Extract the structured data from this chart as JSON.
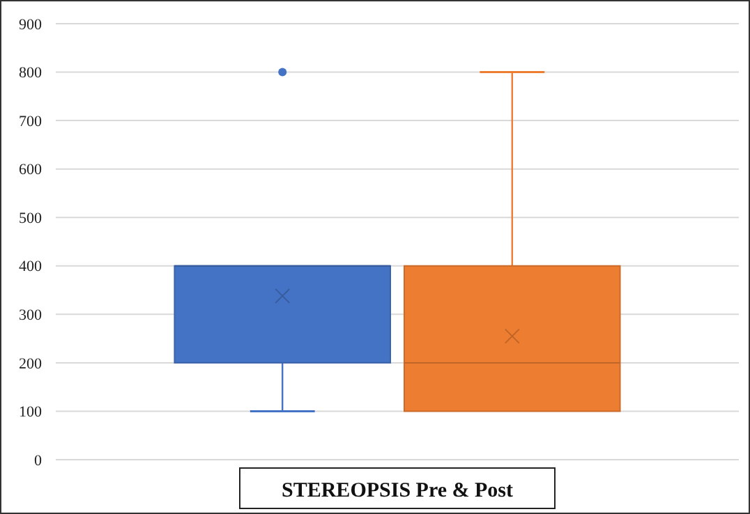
{
  "chart_data": {
    "type": "box",
    "categories": [
      "STEREOPSIS Pre & Post"
    ],
    "series": [
      {
        "color": "#4472c4",
        "boxes": [
          {
            "low": 100,
            "q1": 200,
            "median": 400,
            "q3": 400,
            "high": 400,
            "mean": 338,
            "outliers": [
              800
            ]
          }
        ]
      },
      {
        "color": "#ed7d31",
        "boxes": [
          {
            "low": 100,
            "q1": 100,
            "median": 200,
            "q3": 400,
            "high": 800,
            "mean": 255
          }
        ]
      }
    ],
    "ylim": [
      0,
      900
    ],
    "yticks": [
      0,
      100,
      200,
      300,
      400,
      500,
      600,
      700,
      800,
      900
    ],
    "grid": "y"
  }
}
